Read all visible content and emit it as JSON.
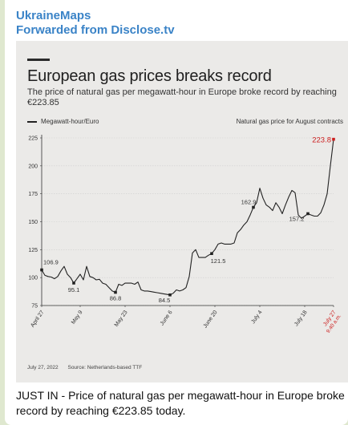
{
  "header": {
    "sender": "UkraineMaps",
    "forwarded": "Forwarded from Disclose.tv"
  },
  "caption": "JUST IN - Price of natural gas per megawatt-hour in Europe broke record by reaching €223.85 today.",
  "colors": {
    "line": "#222222",
    "highlight": "#cc1f1f",
    "background": "#ebeae8"
  },
  "chart_data": {
    "type": "line",
    "title": "European gas prices breaks record",
    "subtitle": "The price of natural gas per megawatt-hour in Europe broke record by reaching €223.85",
    "legend_left": "Megawatt-hour/Euro",
    "legend_right": "Natural gas price for August contracts",
    "footer_date": "July 27, 2022",
    "footer_source": "Source: Netherlands-based TTF",
    "ylim": [
      75,
      225
    ],
    "yticks": [
      75,
      100,
      125,
      150,
      175,
      200,
      225
    ],
    "grid": true,
    "x_tick_labels": [
      {
        "label": "April 27",
        "day": 0
      },
      {
        "label": "May 9",
        "day": 12
      },
      {
        "label": "May 23",
        "day": 26
      },
      {
        "label": "June 6",
        "day": 40
      },
      {
        "label": "June 20",
        "day": 54
      },
      {
        "label": "July 4",
        "day": 68
      },
      {
        "label": "July 18",
        "day": 82
      },
      {
        "label": "July 27",
        "label2": "9:40 a.m.",
        "day": 91,
        "highlight": true
      }
    ],
    "series": [
      {
        "x": [
          0,
          1,
          2,
          3,
          4,
          5,
          6,
          7,
          8,
          9,
          10,
          11,
          12,
          13,
          14,
          15,
          16,
          17,
          18,
          19,
          20,
          21,
          22,
          23,
          24,
          25,
          26,
          27,
          28,
          29,
          30,
          31,
          32,
          33,
          34,
          35,
          36,
          37,
          38,
          39,
          40,
          41,
          42,
          43,
          44,
          45,
          46,
          47,
          48,
          49,
          50,
          51,
          52,
          53,
          54,
          55,
          56,
          57,
          58,
          59,
          60,
          61,
          62,
          63,
          64,
          65,
          66,
          67,
          68,
          69,
          70,
          71,
          72,
          73,
          74,
          75,
          76,
          77,
          78,
          79,
          80,
          81,
          82,
          83,
          84,
          85,
          86,
          87,
          88,
          89,
          90,
          91
        ],
        "y": [
          106.9,
          102,
          101,
          100.5,
          99,
          101,
          106,
          110,
          103,
          100,
          95.1,
          99,
          103,
          98,
          110,
          101,
          100,
          98,
          98.5,
          95,
          94,
          91,
          88,
          86.8,
          94,
          93,
          95,
          95,
          95,
          94,
          96,
          89,
          88,
          88,
          87.5,
          87,
          86.5,
          86,
          85.5,
          85,
          84.5,
          86,
          89,
          88,
          89,
          91,
          101,
          122,
          125,
          118,
          118,
          118,
          120,
          121.5,
          125,
          130,
          131,
          130,
          130,
          130,
          131,
          140,
          143,
          147,
          150,
          156,
          162.9,
          167,
          180,
          171,
          165,
          163,
          160,
          167,
          163,
          157.2,
          165,
          172,
          178,
          176,
          156,
          153,
          155,
          157.2,
          156,
          155,
          155,
          158,
          165,
          175,
          200,
          223.8
        ]
      }
    ],
    "annotations": [
      {
        "day": 0,
        "value": 106.9,
        "label": "106.9",
        "marker": true
      },
      {
        "day": 10,
        "value": 95.1,
        "label": "95.1",
        "marker": true
      },
      {
        "day": 23,
        "value": 86.8,
        "label": "86.8",
        "marker": true
      },
      {
        "day": 40,
        "value": 84.5,
        "label": "84.5",
        "marker": true
      },
      {
        "day": 53,
        "value": 121.5,
        "label": "121.5",
        "marker": true
      },
      {
        "day": 66,
        "value": 162.9,
        "label": "162.9",
        "marker": true
      },
      {
        "day": 83,
        "value": 157.2,
        "label": "157.2",
        "marker": true
      },
      {
        "day": 91,
        "value": 223.8,
        "label": "223.8",
        "marker": true,
        "highlight": true
      }
    ]
  }
}
